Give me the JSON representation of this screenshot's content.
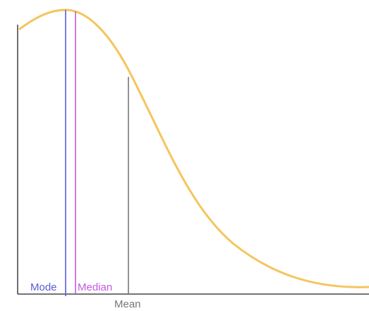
{
  "diagram": {
    "curve_color": "#f5c55c",
    "axis_color": "#222222",
    "labels": {
      "mode": "Mode",
      "median": "Median",
      "mean": "Mean"
    },
    "colors": {
      "mode": "#5b5bd6",
      "median": "#c25ae0",
      "mean": "#777777"
    }
  }
}
